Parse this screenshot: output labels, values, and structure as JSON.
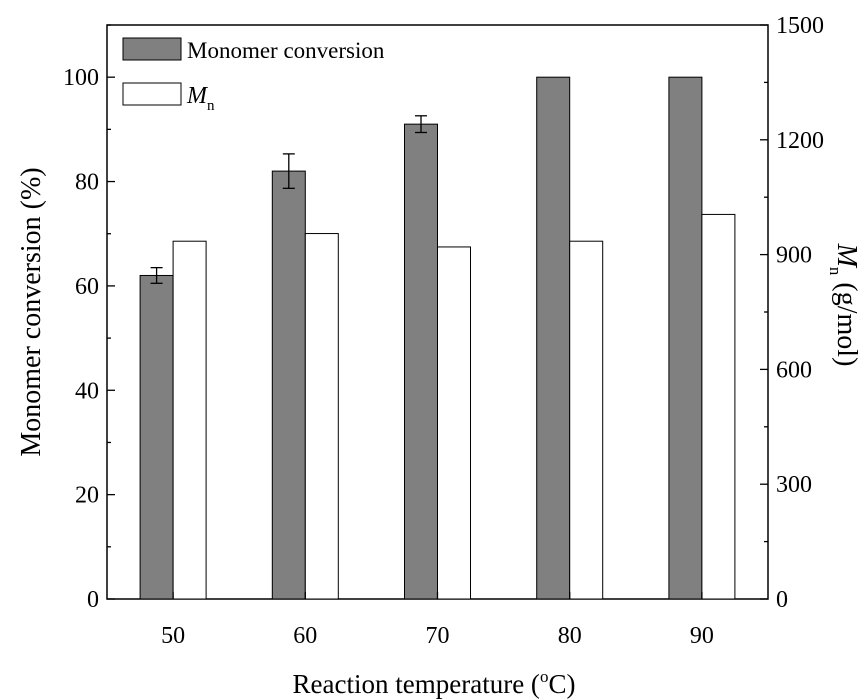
{
  "chart_data": {
    "type": "bar",
    "categories": [
      "50",
      "60",
      "70",
      "80",
      "90"
    ],
    "xlabel": "Reaction temperature (",
    "xlabel_sup": "o",
    "xlabel_tail": "C)",
    "ylabel_left": "Monomer conversion (%)",
    "ylabel_right_italic": "M",
    "ylabel_right_sub": "n",
    "ylabel_right_tail": " (g/mol)",
    "ylim_left": [
      0,
      110
    ],
    "ylim_right": [
      0,
      1500
    ],
    "yticks_left": [
      "0",
      "20",
      "40",
      "60",
      "80",
      "100"
    ],
    "yticks_right": [
      "0",
      "300",
      "600",
      "900",
      "1200",
      "1500"
    ],
    "grid": false,
    "legend_position": "top-left",
    "series": [
      {
        "name": "Monomer conversion",
        "axis": "left",
        "color": "#808080",
        "values": [
          62,
          82,
          91,
          100,
          100
        ],
        "errors": [
          1.5,
          3.3,
          1.6,
          0,
          0
        ]
      },
      {
        "name": "M",
        "name_sub": "n",
        "axis": "right",
        "color": "#ffffff",
        "values": [
          935,
          955,
          920,
          935,
          1005
        ]
      }
    ]
  }
}
